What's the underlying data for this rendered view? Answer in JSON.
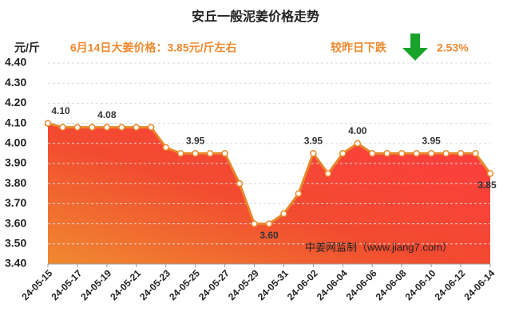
{
  "chart_data": {
    "type": "area-line",
    "title": "安丘一般泥姜价格走势",
    "y_label": "元/斤",
    "annotations": [
      "6月14日大姜价格：3.85元/斤左右",
      "较昨日下跌",
      "2.53%",
      "中姜网监制（www.jiang7.com）"
    ],
    "categories": [
      "24-05-15",
      null,
      "24-05-17",
      null,
      "24-05-19",
      null,
      "24-05-21",
      null,
      "24-05-23",
      null,
      "24-05-25",
      null,
      "24-05-27",
      null,
      "24-05-29",
      null,
      "24-05-31",
      null,
      "24-06-02",
      null,
      "24-06-04",
      null,
      "24-06-06",
      null,
      "24-06-08",
      null,
      "24-06-10",
      null,
      "24-06-12",
      null,
      "24-06-14"
    ],
    "values": [
      4.1,
      4.08,
      4.08,
      4.08,
      4.08,
      4.08,
      4.08,
      4.08,
      3.98,
      3.95,
      3.95,
      3.95,
      3.95,
      3.8,
      3.6,
      3.6,
      3.65,
      3.75,
      3.95,
      3.85,
      3.95,
      4.0,
      3.95,
      3.95,
      3.95,
      3.95,
      3.95,
      3.95,
      3.95,
      3.95,
      3.85
    ],
    "value_labels": [
      "4.10",
      null,
      null,
      null,
      "4.08",
      null,
      null,
      null,
      null,
      null,
      "3.95",
      null,
      null,
      null,
      null,
      "3.60",
      null,
      null,
      "3.95",
      null,
      null,
      "4.00",
      null,
      null,
      null,
      null,
      "3.95",
      null,
      null,
      null,
      "3.85"
    ],
    "color": "#e8862a",
    "ylim": [
      3.4,
      4.4
    ],
    "yticks": [
      {
        "value": 3.4,
        "label": "3.40"
      },
      {
        "value": 3.5,
        "label": "3.50"
      },
      {
        "value": 3.6,
        "label": "3.60"
      },
      {
        "value": 3.7,
        "label": "3.70"
      },
      {
        "value": 3.8,
        "label": "3.80"
      },
      {
        "value": 3.9,
        "label": "3.90"
      },
      {
        "value": 4.0,
        "label": "4.00"
      },
      {
        "value": 4.1,
        "label": "4.10"
      },
      {
        "value": 4.2,
        "label": "4.20"
      },
      {
        "value": 4.3,
        "label": "4.30"
      },
      {
        "value": 4.4,
        "label": "4.40"
      }
    ],
    "grid": true
  }
}
